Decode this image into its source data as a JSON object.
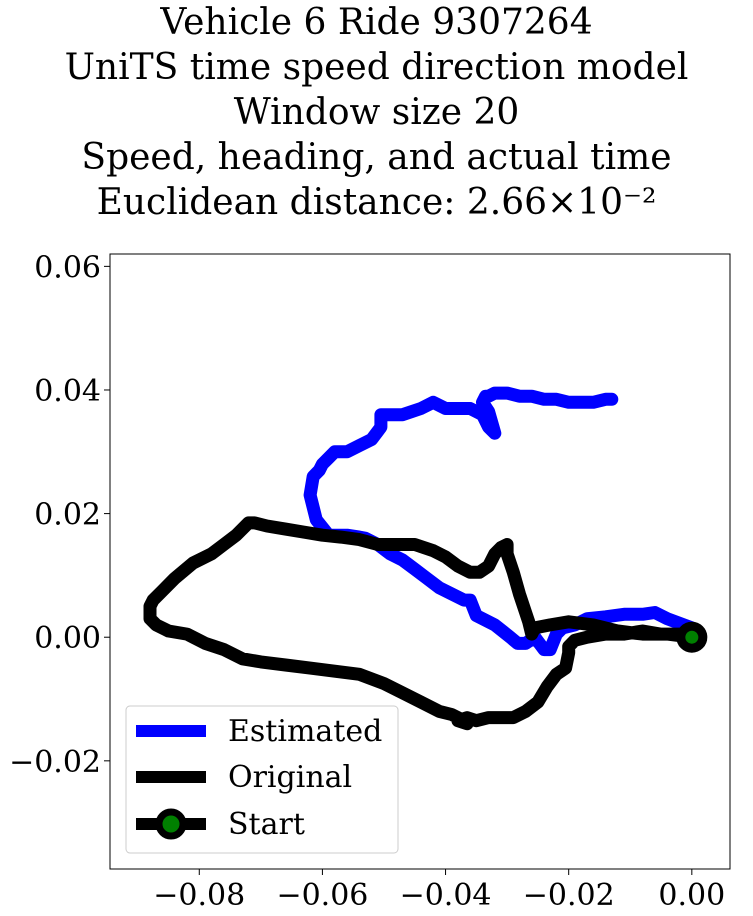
{
  "chart_data": {
    "type": "line",
    "title_lines": [
      "Vehicle 6 Ride 9307264",
      "UniTS time speed direction model",
      "Window size 20",
      "Speed, heading, and actual time",
      "Euclidean distance: 2.66×10⁻²"
    ],
    "xlabel": "",
    "ylabel": "",
    "xlim": [
      -0.0945,
      0.0062
    ],
    "ylim": [
      -0.0375,
      0.062
    ],
    "xticks": [
      -0.08,
      -0.06,
      -0.04,
      -0.02,
      0.0
    ],
    "xtick_labels": [
      "−0.08",
      "−0.06",
      "−0.04",
      "−0.02",
      "0.00"
    ],
    "yticks": [
      -0.02,
      0.0,
      0.02,
      0.04,
      0.06
    ],
    "ytick_labels": [
      "−0.02",
      "0.00",
      "0.02",
      "0.04",
      "0.06"
    ],
    "grid": false,
    "legend_position": "lower-left",
    "series": [
      {
        "name": "Estimated",
        "color": "#0000ff",
        "x": [
          0.0,
          -0.004,
          -0.006,
          -0.008,
          -0.011,
          -0.014,
          -0.017,
          -0.019,
          -0.021,
          -0.022,
          -0.023,
          -0.024,
          -0.0255,
          -0.027,
          -0.0283,
          -0.0295,
          -0.032,
          -0.034,
          -0.035,
          -0.036,
          -0.037,
          -0.039,
          -0.041,
          -0.043,
          -0.045,
          -0.047,
          -0.049,
          -0.051,
          -0.053,
          -0.054,
          -0.056,
          -0.059,
          -0.061,
          -0.062,
          -0.0615,
          -0.0605,
          -0.06,
          -0.059,
          -0.058,
          -0.056,
          -0.054,
          -0.052,
          -0.0505,
          -0.0505,
          -0.05,
          -0.049,
          -0.047,
          -0.044,
          -0.042,
          -0.04,
          -0.038,
          -0.036,
          -0.034,
          -0.033,
          -0.032,
          -0.033,
          -0.034,
          -0.0335,
          -0.033,
          -0.032,
          -0.03,
          -0.028,
          -0.026,
          -0.024,
          -0.022,
          -0.02,
          -0.018,
          -0.016,
          -0.014,
          -0.013
        ],
        "y": [
          0.0015,
          0.003,
          0.004,
          0.0037,
          0.0037,
          0.0033,
          0.003,
          0.002,
          0.0015,
          0.0005,
          -0.002,
          -0.002,
          0.0,
          -0.001,
          -0.001,
          0.0,
          0.002,
          0.003,
          0.0035,
          0.006,
          0.006,
          0.007,
          0.008,
          0.0095,
          0.011,
          0.0125,
          0.0135,
          0.015,
          0.016,
          0.0162,
          0.0165,
          0.0165,
          0.019,
          0.023,
          0.026,
          0.027,
          0.028,
          0.029,
          0.03,
          0.03,
          0.031,
          0.032,
          0.034,
          0.036,
          0.036,
          0.036,
          0.036,
          0.037,
          0.038,
          0.037,
          0.037,
          0.037,
          0.036,
          0.034,
          0.033,
          0.0365,
          0.038,
          0.039,
          0.039,
          0.0395,
          0.0395,
          0.039,
          0.039,
          0.0385,
          0.0385,
          0.038,
          0.038,
          0.038,
          0.0385,
          0.0385
        ]
      },
      {
        "name": "Original",
        "color": "#000000",
        "x": [
          0.0,
          -0.004,
          -0.008,
          -0.012,
          -0.016,
          -0.02,
          -0.023,
          -0.0255,
          -0.026,
          -0.0265,
          -0.027,
          -0.028,
          -0.029,
          -0.03,
          -0.03,
          -0.031,
          -0.032,
          -0.033,
          -0.0345,
          -0.036,
          -0.038,
          -0.04,
          -0.042,
          -0.045,
          -0.048,
          -0.051,
          -0.054,
          -0.057,
          -0.06,
          -0.063,
          -0.066,
          -0.069,
          -0.071,
          -0.072,
          -0.074,
          -0.076,
          -0.078,
          -0.081,
          -0.084,
          -0.086,
          -0.0875,
          -0.088,
          -0.088,
          -0.087,
          -0.085,
          -0.082,
          -0.079,
          -0.076,
          -0.073,
          -0.07,
          -0.066,
          -0.062,
          -0.058,
          -0.054,
          -0.05,
          -0.047,
          -0.044,
          -0.041,
          -0.039,
          -0.037,
          -0.0365,
          -0.038,
          -0.0365,
          -0.035,
          -0.033,
          -0.031,
          -0.029,
          -0.027,
          -0.025,
          -0.0235,
          -0.022,
          -0.0205,
          -0.02,
          -0.02,
          -0.019,
          -0.017,
          -0.014,
          -0.011,
          -0.008,
          -0.005,
          -0.002,
          0.0
        ],
        "y": [
          0.0,
          0.0005,
          0.0005,
          0.001,
          0.002,
          0.0025,
          0.002,
          0.0015,
          0.0005,
          0.0025,
          0.004,
          0.007,
          0.0105,
          0.0135,
          0.015,
          0.0145,
          0.0135,
          0.0115,
          0.0105,
          0.0105,
          0.0115,
          0.013,
          0.014,
          0.015,
          0.015,
          0.015,
          0.0158,
          0.0162,
          0.0165,
          0.017,
          0.0175,
          0.018,
          0.0185,
          0.0185,
          0.0165,
          0.015,
          0.0135,
          0.012,
          0.0095,
          0.0075,
          0.006,
          0.005,
          0.003,
          0.002,
          0.001,
          0.0005,
          -0.001,
          -0.002,
          -0.0035,
          -0.004,
          -0.0045,
          -0.005,
          -0.0055,
          -0.006,
          -0.0075,
          -0.009,
          -0.0105,
          -0.012,
          -0.0125,
          -0.0135,
          -0.014,
          -0.0135,
          -0.013,
          -0.0135,
          -0.013,
          -0.013,
          -0.013,
          -0.012,
          -0.0105,
          -0.008,
          -0.006,
          -0.005,
          -0.0025,
          -0.0015,
          -0.0005,
          0.0,
          0.0005,
          0.0005,
          0.001,
          0.0005,
          0.0005,
          0.0
        ]
      }
    ],
    "start_marker": {
      "name": "Start",
      "x": 0.0,
      "y": 0.0,
      "fill": "#008000",
      "edge": "#000000"
    }
  }
}
